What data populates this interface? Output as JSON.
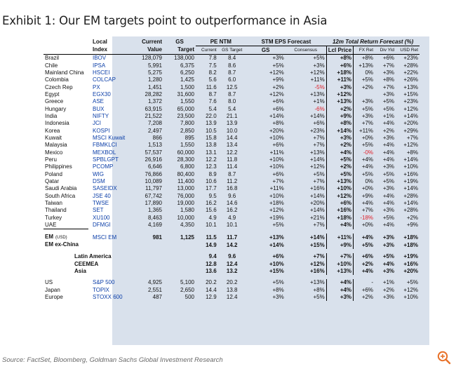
{
  "title": "Exhibit 1: Our EM targets point to outperformance in Asia",
  "source": "Source: FactSet, Bloomberg, Goldman Sachs Global Investment Research",
  "header1": {
    "local": "Local",
    "current": "Current",
    "gs": "GS",
    "pe": "PE NTM",
    "stm": "STM EPS Forecast",
    "tr": "12m Total Return Forecast (%)"
  },
  "header2": {
    "index": "Index",
    "value": "Value",
    "target": "Target",
    "pe_current": "Current",
    "pe_target": "GS Target",
    "gs": "GS",
    "consensus": "Consensus",
    "lcl_price": "Lcl Price",
    "fx_ret": "FX Ret",
    "div_yld": "Div Yld",
    "usd_ret": "USD Ret"
  },
  "rows": [
    [
      "Brazil",
      "IBOV",
      "128,079",
      "138,000",
      "7.8",
      "8.4",
      "+3%",
      "+5%",
      "+8%",
      "+8%",
      "+6%",
      "+23%"
    ],
    [
      "Chile",
      "IPSA",
      "5,991",
      "6,375",
      "7.5",
      "8.6",
      "+5%",
      "+3%",
      "+6%",
      "+13%",
      "+7%",
      "+28%"
    ],
    [
      "Mainland China",
      "HSCEI",
      "5,275",
      "6,250",
      "8.2",
      "8.7",
      "+12%",
      "+12%",
      "+18%",
      "0%",
      "+3%",
      "+22%"
    ],
    [
      "Colombia",
      "COLCAP",
      "1,280",
      "1,425",
      "5.6",
      "6.0",
      "+9%",
      "+11%",
      "+11%",
      "+5%",
      "+8%",
      "+26%"
    ],
    [
      "Czech Rep",
      "PX",
      "1,451",
      "1,500",
      "11.6",
      "12.5",
      "+2%",
      "-5%",
      "+3%",
      "+2%",
      "+7%",
      "+13%"
    ],
    [
      "Egypt",
      "EGX30",
      "28,282",
      "31,600",
      "8.7",
      "8.7",
      "+12%",
      "+13%",
      "+12%",
      "",
      "+3%",
      "+15%"
    ],
    [
      "Greece",
      "ASE",
      "1,372",
      "1,550",
      "7.6",
      "8.0",
      "+6%",
      "+1%",
      "+13%",
      "+3%",
      "+5%",
      "+23%"
    ],
    [
      "Hungary",
      "BUX",
      "63,915",
      "65,000",
      "5.4",
      "5.4",
      "+6%",
      "-6%",
      "+2%",
      "+5%",
      "+5%",
      "+12%"
    ],
    [
      "India",
      "NIFTY",
      "21,522",
      "23,500",
      "22.0",
      "21.1",
      "+14%",
      "+14%",
      "+9%",
      "+3%",
      "+1%",
      "+14%"
    ],
    [
      "Indonesia",
      "JCI",
      "7,208",
      "7,800",
      "13.9",
      "13.9",
      "+8%",
      "+6%",
      "+8%",
      "+7%",
      "+4%",
      "+20%"
    ],
    [
      "Korea",
      "KOSPI",
      "2,497",
      "2,850",
      "10.5",
      "10.0",
      "+20%",
      "+23%",
      "+14%",
      "+11%",
      "+2%",
      "+29%"
    ],
    [
      "Kuwait",
      "MSCI Kuwait",
      "866",
      "895",
      "15.8",
      "14.4",
      "+10%",
      "+7%",
      "+3%",
      "+0%",
      "+3%",
      "+7%"
    ],
    [
      "Malaysia",
      "FBMKLCI",
      "1,513",
      "1,550",
      "13.8",
      "13.4",
      "+6%",
      "+7%",
      "+2%",
      "+5%",
      "+4%",
      "+12%"
    ],
    [
      "Mexico",
      "MEXBOL",
      "57,537",
      "60,000",
      "13.1",
      "12.2",
      "+11%",
      "+13%",
      "+4%",
      "-0%",
      "+4%",
      "+8%"
    ],
    [
      "Peru",
      "SPBLGPT",
      "26,916",
      "28,300",
      "12.2",
      "11.8",
      "+10%",
      "+14%",
      "+5%",
      "+4%",
      "+4%",
      "+14%"
    ],
    [
      "Philippines",
      "PCOMP",
      "6,646",
      "6,800",
      "12.3",
      "11.4",
      "+10%",
      "+12%",
      "+2%",
      "+4%",
      "+3%",
      "+10%"
    ],
    [
      "Poland",
      "WIG",
      "76,866",
      "80,400",
      "8.9",
      "8.7",
      "+6%",
      "+5%",
      "+5%",
      "+5%",
      "+5%",
      "+16%"
    ],
    [
      "Qatar",
      "DSM",
      "10,089",
      "11,400",
      "10.6",
      "11.2",
      "+7%",
      "+7%",
      "+13%",
      "0%",
      "+5%",
      "+19%"
    ],
    [
      "Saudi Arabia",
      "SASEIDX",
      "11,797",
      "13,000",
      "17.7",
      "16.8",
      "+11%",
      "+16%",
      "+10%",
      "+0%",
      "+3%",
      "+14%"
    ],
    [
      "South Africa",
      "JSE 40",
      "67,742",
      "76,000",
      "9.5",
      "9.6",
      "+10%",
      "+14%",
      "+12%",
      "+9%",
      "+4%",
      "+28%"
    ],
    [
      "Taiwan",
      "TWSE",
      "17,890",
      "19,000",
      "16.2",
      "14.6",
      "+18%",
      "+20%",
      "+6%",
      "+4%",
      "+4%",
      "+14%"
    ],
    [
      "Thailand",
      "SET",
      "1,365",
      "1,580",
      "15.6",
      "16.2",
      "+12%",
      "+14%",
      "+16%",
      "+7%",
      "+3%",
      "+28%"
    ],
    [
      "Turkey",
      "XU100",
      "8,463",
      "10,000",
      "4.9",
      "4.9",
      "+19%",
      "+21%",
      "+18%",
      "-18%",
      "+5%",
      "+2%"
    ],
    [
      "UAE",
      "DFMGI",
      "4,169",
      "4,350",
      "10.1",
      "10.1",
      "+5%",
      "+7%",
      "+4%",
      "+0%",
      "+4%",
      "+9%"
    ]
  ],
  "em_rows": [
    [
      "EM",
      "(USD)",
      "MSCI EM",
      "981",
      "1,125",
      "11.5",
      "11.7",
      "+13%",
      "+14%",
      "+11%",
      "+4%",
      "+3%",
      "+18%"
    ],
    [
      "EM ex-China",
      "",
      "",
      "",
      "",
      "14.9",
      "14.2",
      "+14%",
      "+15%",
      "+9%",
      "+5%",
      "+3%",
      "+18%"
    ]
  ],
  "region_rows": [
    [
      "Latin America",
      "9.4",
      "9.6",
      "+6%",
      "+7%",
      "+7%",
      "+6%",
      "+5%",
      "+19%"
    ],
    [
      "CEEMEA",
      "12.8",
      "12.4",
      "+10%",
      "+12%",
      "+10%",
      "+2%",
      "+4%",
      "+16%"
    ],
    [
      "Asia",
      "13.6",
      "13.2",
      "+15%",
      "+16%",
      "+13%",
      "+4%",
      "+3%",
      "+20%"
    ]
  ],
  "dm_rows": [
    [
      "US",
      "S&P 500",
      "4,925",
      "5,100",
      "20.2",
      "20.2",
      "+5%",
      "+13%",
      "+4%",
      "-",
      "+1%",
      "+5%"
    ],
    [
      "Japan",
      "TOPIX",
      "2,551",
      "2,650",
      "14.4",
      "13.8",
      "+8%",
      "+8%",
      "+4%",
      "+6%",
      "+2%",
      "+12%"
    ],
    [
      "Europe",
      "STOXX 600",
      "487",
      "500",
      "12.9",
      "12.4",
      "+3%",
      "+5%",
      "+3%",
      "+2%",
      "+3%",
      "+10%"
    ]
  ],
  "colors": {
    "index_blue": "#0b3ea8",
    "negative_red": "#e0202a",
    "shade": "#d9e1ec"
  },
  "icons": {
    "zoom": "zoom-in-icon"
  }
}
